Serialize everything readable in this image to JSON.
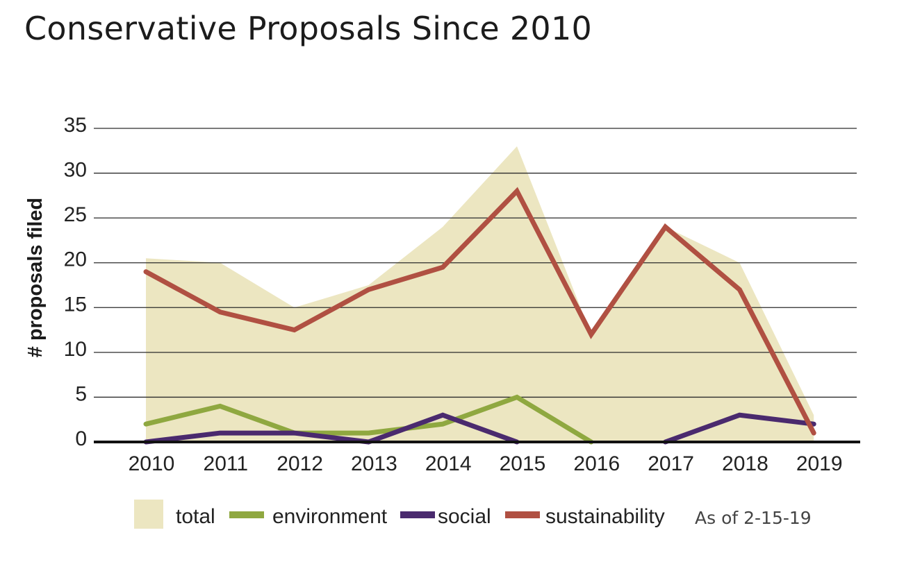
{
  "title": "Conservative Proposals Since 2010",
  "note": "As of 2-15-19",
  "chart_data": {
    "type": "line",
    "title": "Conservative Proposals Since 2010",
    "xlabel": "",
    "ylabel": "# proposals filed",
    "categories": [
      "2010",
      "2011",
      "2012",
      "2013",
      "2014",
      "2015",
      "2016",
      "2017",
      "2018",
      "2019"
    ],
    "yticks": [
      "0",
      "5",
      "10",
      "15",
      "20",
      "25",
      "30",
      "35"
    ],
    "ylim": [
      0,
      35
    ],
    "grid": "horizontal",
    "legend_position": "bottom",
    "series": [
      {
        "name": "total",
        "render": "area",
        "color": "#ece6c1",
        "values": [
          20.5,
          20,
          15,
          17.5,
          24,
          33,
          12,
          24,
          20,
          3
        ]
      },
      {
        "name": "environment",
        "render": "line",
        "color": "#8fa840",
        "values": [
          2,
          4,
          1,
          1,
          2,
          5,
          0,
          null,
          null,
          null
        ]
      },
      {
        "name": "social",
        "render": "line",
        "color": "#4a2a6e",
        "values": [
          0,
          1,
          1,
          0,
          3,
          0,
          null,
          0,
          3,
          2
        ]
      },
      {
        "name": "sustainability",
        "render": "line",
        "color": "#b05042",
        "values": [
          19,
          14.5,
          12.5,
          17,
          19.5,
          28,
          12,
          24,
          17,
          1
        ]
      }
    ]
  }
}
